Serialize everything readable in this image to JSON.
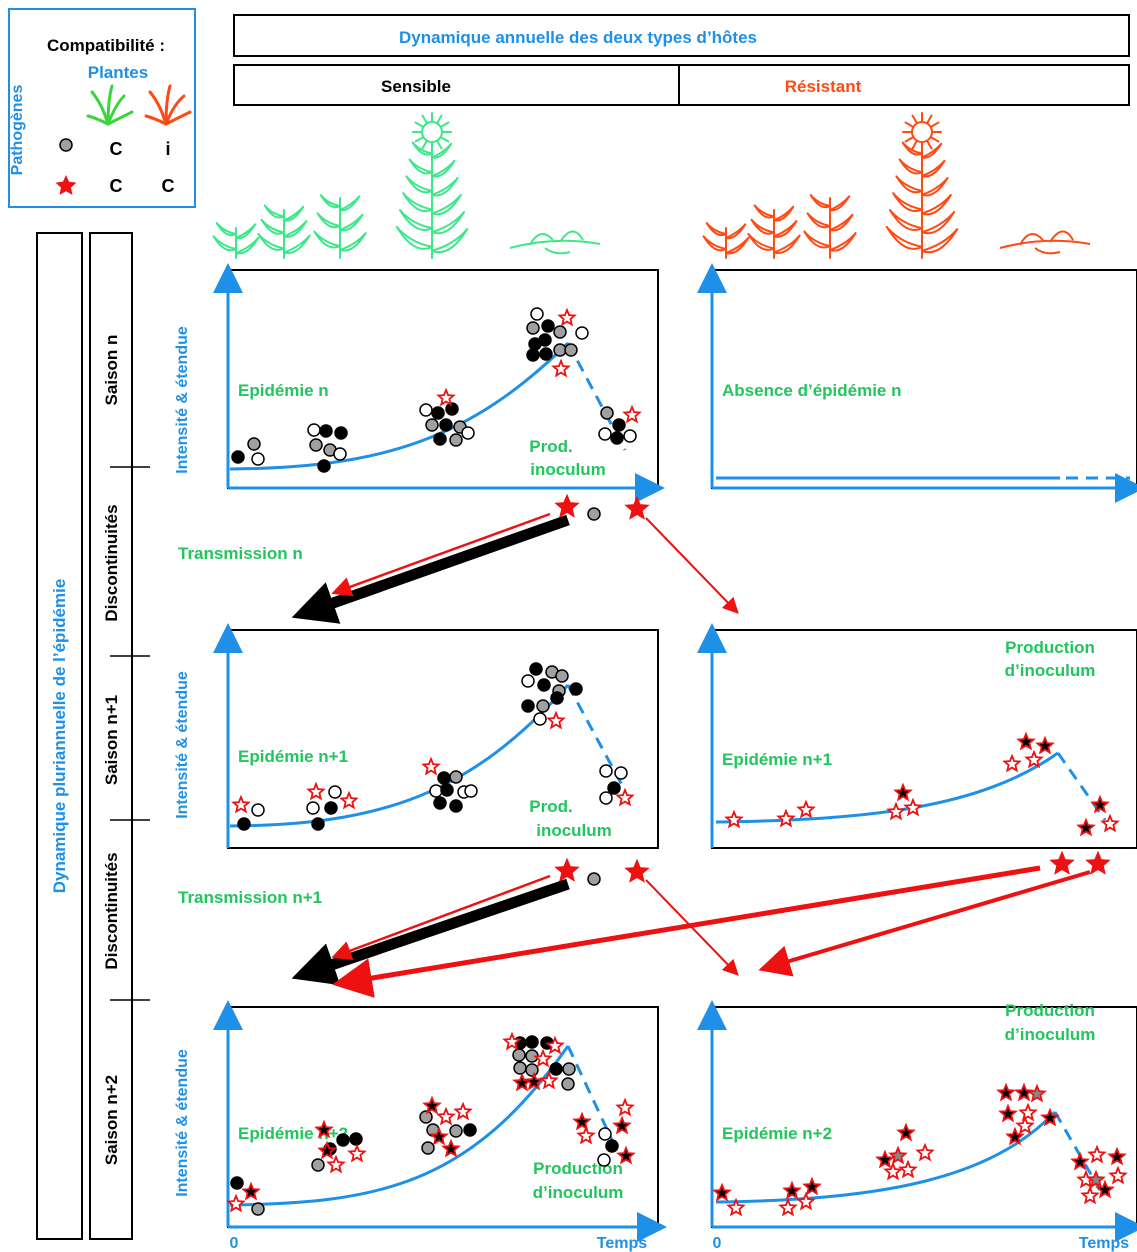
{
  "legend": {
    "title": "Compatibilité :",
    "plants_label": "Plantes",
    "pathogens_label": "Pathogènes",
    "row1": [
      "C",
      "i"
    ],
    "row2": [
      "C",
      "C"
    ]
  },
  "header": {
    "title": "Dynamique annuelle des deux types d’hôtes",
    "col_sensible": "Sensible",
    "col_resistant": "Résistant"
  },
  "side": {
    "outer_label": "Dynamique pluriannuelle de l’épidémie",
    "segments": [
      "Saison n",
      "Discontinuités",
      "Saison n+1",
      "Discontinuités",
      "Saison n+2"
    ]
  },
  "ylabel": "Intensité & étendue",
  "x_axis": {
    "zero": "0",
    "end": "Temps"
  },
  "panels": {
    "s1": {
      "title": "Epidémie n",
      "note": "Prod.\ninoculum"
    },
    "r1": {
      "title": "Absence d’épidémie n"
    },
    "s2": {
      "title": "Epidémie n+1",
      "note": "Prod.\ninoculum"
    },
    "r2": {
      "title": "Epidémie n+1",
      "note": "Production\nd’inoculum"
    },
    "s3": {
      "title": "Epidémie n+2",
      "note": "Production\nd’inoculum"
    },
    "r3": {
      "title": "Epidémie n+2",
      "note": "Production\nd’inoculum"
    }
  },
  "transmission": [
    "Transmission n",
    "Transmission n+1"
  ],
  "colors": {
    "blue": "#1e90e8",
    "green": "#22c55e",
    "plant_green": "#3ee88a",
    "orange": "#ff4a14",
    "red": "#ee1111",
    "grey": "#a0a0a0",
    "black": "#000000"
  }
}
